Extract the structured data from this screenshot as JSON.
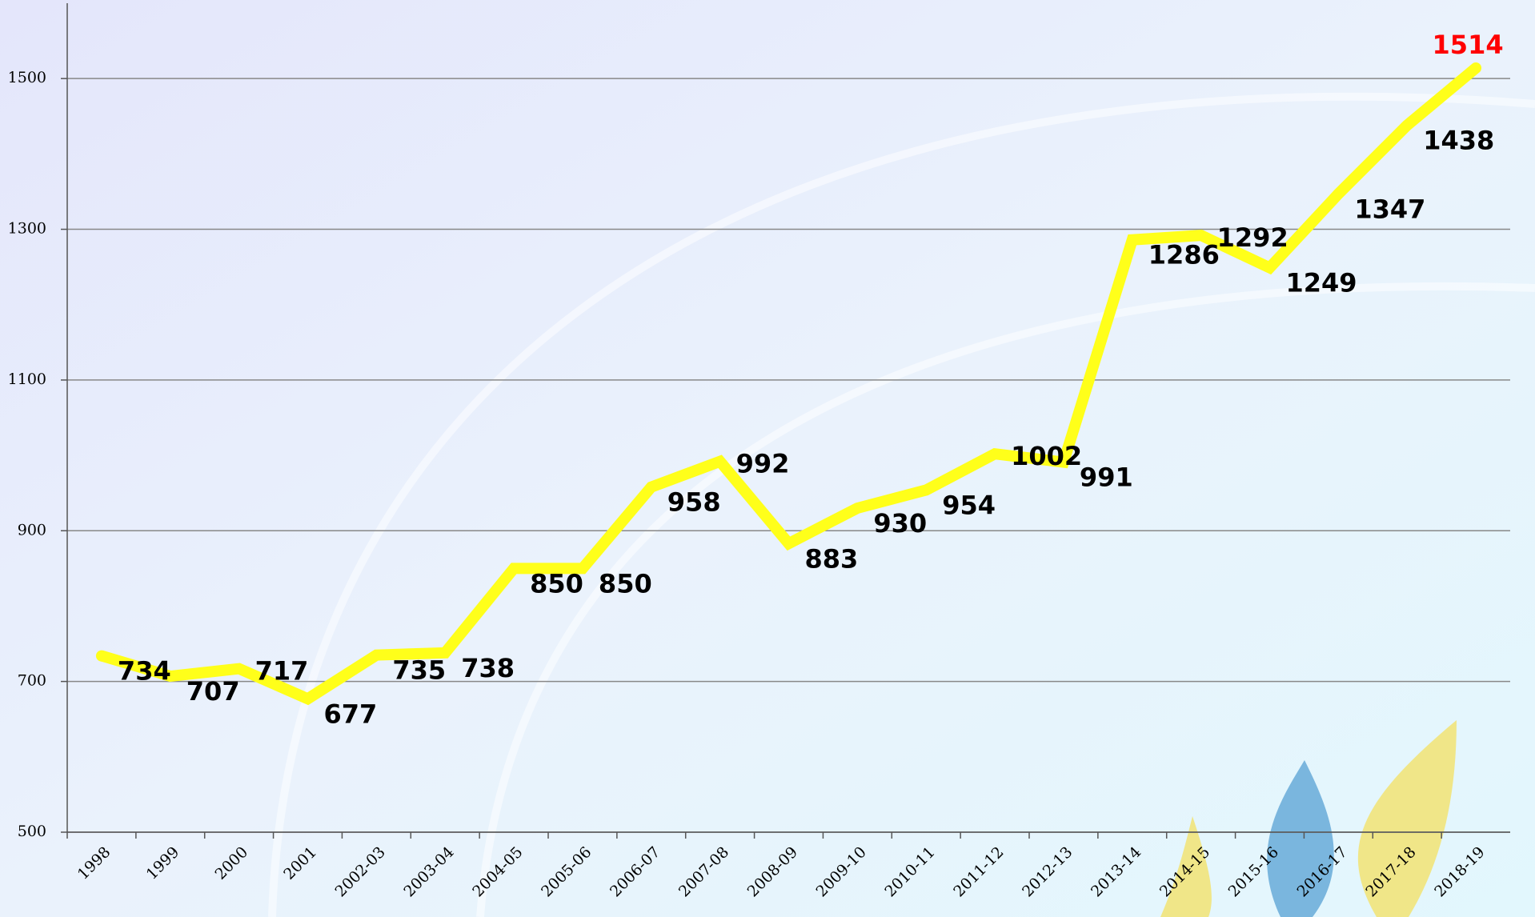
{
  "chart_data": {
    "type": "line",
    "categories": [
      "1998",
      "1999",
      "2000",
      "2001",
      "2002-03",
      "2003-04",
      "2004-05",
      "2005-06",
      "2006-07",
      "2007-08",
      "2008-09",
      "2009-10",
      "2010-11",
      "2011-12",
      "2012-13",
      "2013-14",
      "2014-15",
      "2015-16",
      "2016-17",
      "2017-18",
      "2018-19"
    ],
    "values": [
      734,
      707,
      717,
      677,
      735,
      738,
      850,
      850,
      958,
      992,
      883,
      930,
      954,
      1002,
      991,
      1286,
      1292,
      1249,
      1347,
      1438,
      1514
    ],
    "color": "#ffff1a",
    "label_color": "#000000",
    "last_label_color": "#ff0000",
    "ylim": [
      500,
      1600
    ],
    "yticks": [
      500,
      700,
      900,
      1100,
      1300,
      1500
    ],
    "grid": true
  }
}
